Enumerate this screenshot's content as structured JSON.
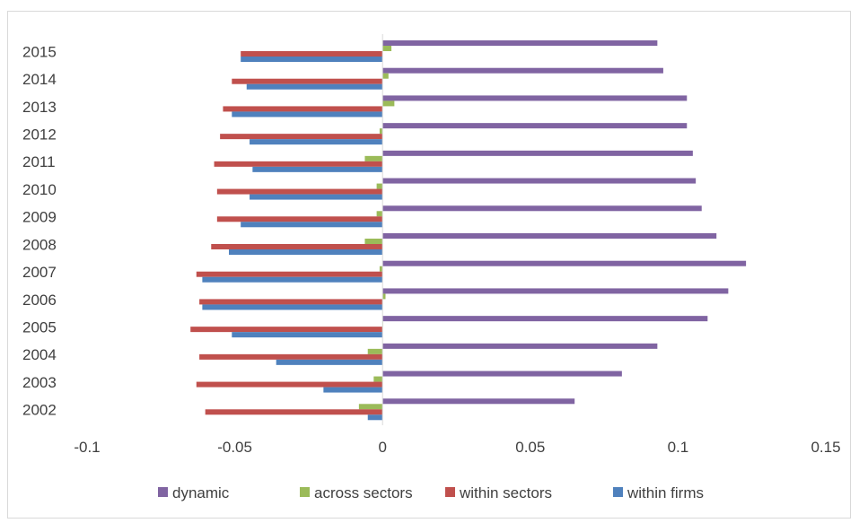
{
  "chart_data": {
    "type": "bar",
    "orientation": "horizontal",
    "categories": [
      "2002",
      "2003",
      "2004",
      "2005",
      "2006",
      "2007",
      "2008",
      "2009",
      "2010",
      "2011",
      "2012",
      "2013",
      "2014",
      "2015"
    ],
    "series": [
      {
        "name": "dynamic",
        "color": "#8064a2",
        "values": [
          0.065,
          0.081,
          0.093,
          0.11,
          0.117,
          0.123,
          0.113,
          0.108,
          0.106,
          0.105,
          0.103,
          0.103,
          0.095,
          0.093
        ]
      },
      {
        "name": "across sectors",
        "color": "#9bbb59",
        "values": [
          -0.008,
          -0.003,
          -0.005,
          0.0,
          0.001,
          -0.001,
          -0.006,
          -0.002,
          -0.002,
          -0.006,
          -0.001,
          0.004,
          0.002,
          0.003
        ]
      },
      {
        "name": "within sectors",
        "color": "#c0504d",
        "values": [
          -0.06,
          -0.063,
          -0.062,
          -0.065,
          -0.062,
          -0.063,
          -0.058,
          -0.056,
          -0.056,
          -0.057,
          -0.055,
          -0.054,
          -0.051,
          -0.048
        ]
      },
      {
        "name": "within firms",
        "color": "#4f81bd",
        "values": [
          -0.005,
          -0.02,
          -0.036,
          -0.051,
          -0.061,
          -0.061,
          -0.052,
          -0.048,
          -0.045,
          -0.044,
          -0.045,
          -0.051,
          -0.046,
          -0.048
        ]
      }
    ],
    "xlim": [
      -0.1,
      0.15
    ],
    "xticks": [
      "-0.1",
      "-0.05",
      "0",
      "0.05",
      "0.1",
      "0.15"
    ],
    "grid": false,
    "legend_position": "bottom",
    "title": "",
    "xlabel": "",
    "ylabel": ""
  }
}
